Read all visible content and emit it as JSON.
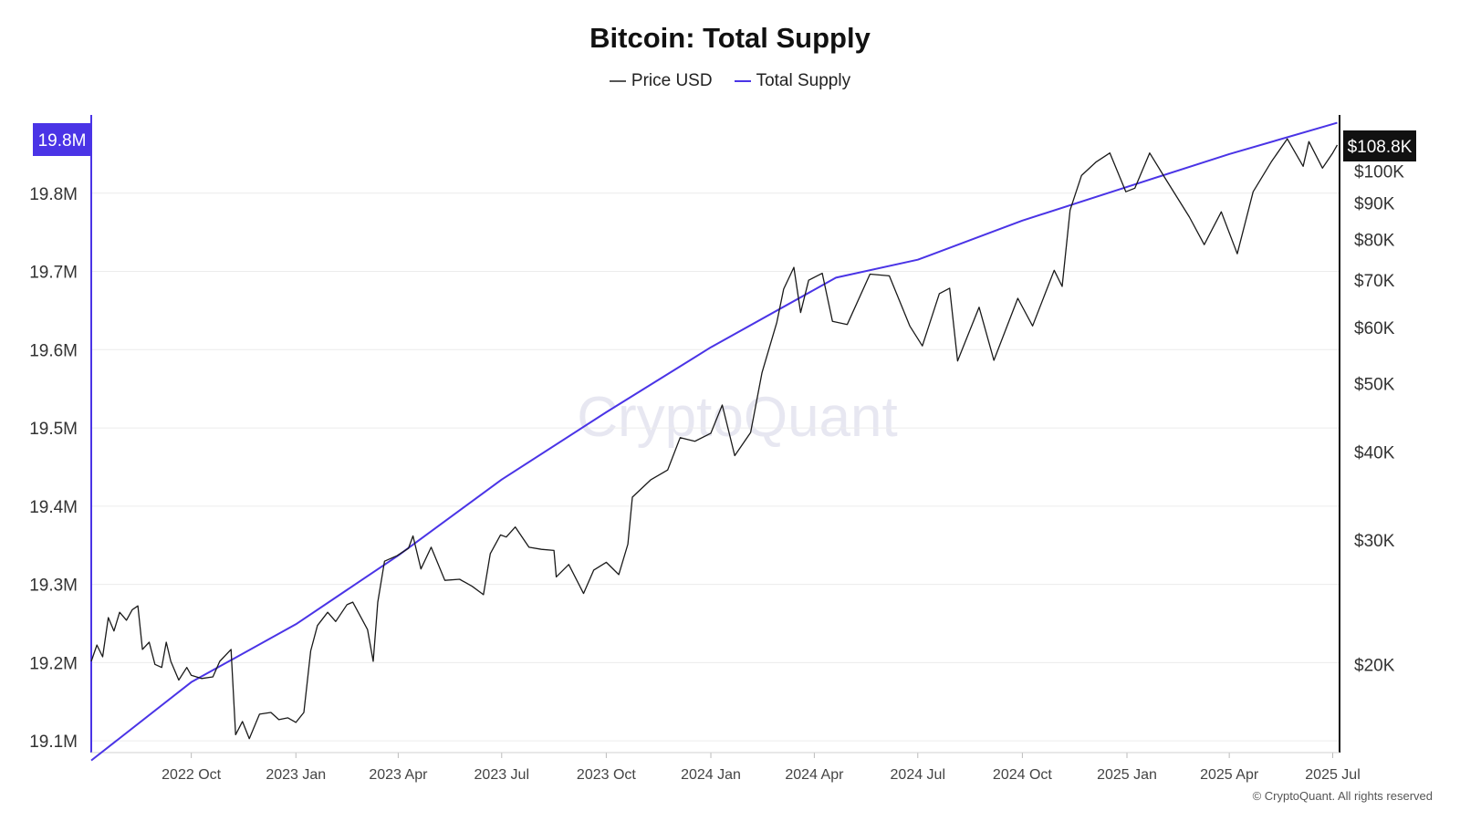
{
  "title": "Bitcoin: Total Supply",
  "watermark": "CryptoQuant",
  "copyright": "© CryptoQuant. All rights reserved",
  "legend": [
    {
      "label": "Price USD",
      "color": "#555555"
    },
    {
      "label": "Total Supply",
      "color": "#4a34e6"
    }
  ],
  "colors": {
    "supply": "#4a34e6",
    "price": "#1a1a1a",
    "left_axis": "#4a34e6",
    "right_axis": "#111111"
  },
  "chart_data": {
    "type": "line",
    "title": "Bitcoin: Total Supply",
    "x_ticks": [
      "2022 Oct",
      "2023 Jan",
      "2023 Apr",
      "2023 Jul",
      "2023 Oct",
      "2024 Jan",
      "2024 Apr",
      "2024 Jul",
      "2024 Oct",
      "2025 Jan",
      "2025 Apr",
      "2025 Jul"
    ],
    "x_tick_dates": [
      "2022-10-01",
      "2023-01-01",
      "2023-04-01",
      "2023-07-01",
      "2023-10-01",
      "2024-01-01",
      "2024-04-01",
      "2024-07-01",
      "2024-10-01",
      "2025-01-01",
      "2025-04-01",
      "2025-07-01"
    ],
    "xlim": [
      "2022-07-05",
      "2025-07-07"
    ],
    "y_left": {
      "label": "Total Supply",
      "ticks": [
        19.1,
        19.2,
        19.3,
        19.4,
        19.5,
        19.6,
        19.7,
        19.8
      ],
      "tick_labels": [
        "19.1M",
        "19.2M",
        "19.3M",
        "19.4M",
        "19.5M",
        "19.6M",
        "19.7M",
        "19.8M"
      ],
      "ylim": [
        19.085,
        19.9
      ],
      "unit": "M"
    },
    "y_right": {
      "scale": "log",
      "ticks": [
        20000,
        30000,
        40000,
        50000,
        60000,
        70000,
        80000,
        90000,
        100000
      ],
      "tick_labels": [
        "$20K",
        "$30K",
        "$40K",
        "$50K",
        "$60K",
        "$70K",
        "$80K",
        "$90K",
        "$100K"
      ],
      "ylim": [
        15000,
        120000
      ]
    },
    "current_labels": {
      "supply": "19.8M",
      "price": "$108.8K"
    },
    "grid": true,
    "legend_position": "top-center",
    "series": [
      {
        "name": "Total Supply",
        "axis": "left",
        "color": "#4a34e6",
        "points": [
          [
            "2022-07-05",
            19.075
          ],
          [
            "2022-10-01",
            19.175
          ],
          [
            "2023-01-01",
            19.249
          ],
          [
            "2023-04-01",
            19.337
          ],
          [
            "2023-07-01",
            19.434
          ],
          [
            "2023-10-01",
            19.52
          ],
          [
            "2024-01-01",
            19.603
          ],
          [
            "2024-04-20",
            19.692
          ],
          [
            "2024-07-01",
            19.715
          ],
          [
            "2024-10-01",
            19.765
          ],
          [
            "2025-01-01",
            19.808
          ],
          [
            "2025-04-01",
            19.85
          ],
          [
            "2025-07-05",
            19.89
          ]
        ]
      },
      {
        "name": "Price USD",
        "axis": "right",
        "color": "#1a1a1a",
        "points": [
          [
            "2022-07-05",
            20200
          ],
          [
            "2022-07-10",
            21300
          ],
          [
            "2022-07-15",
            20500
          ],
          [
            "2022-07-20",
            23300
          ],
          [
            "2022-07-25",
            22300
          ],
          [
            "2022-07-30",
            23700
          ],
          [
            "2022-08-05",
            23100
          ],
          [
            "2022-08-10",
            23900
          ],
          [
            "2022-08-15",
            24200
          ],
          [
            "2022-08-19",
            21000
          ],
          [
            "2022-08-25",
            21500
          ],
          [
            "2022-08-30",
            20000
          ],
          [
            "2022-09-05",
            19800
          ],
          [
            "2022-09-09",
            21500
          ],
          [
            "2022-09-13",
            20200
          ],
          [
            "2022-09-20",
            19000
          ],
          [
            "2022-09-27",
            19800
          ],
          [
            "2022-10-01",
            19300
          ],
          [
            "2022-10-10",
            19100
          ],
          [
            "2022-10-20",
            19200
          ],
          [
            "2022-10-26",
            20200
          ],
          [
            "2022-11-05",
            21000
          ],
          [
            "2022-11-09",
            15900
          ],
          [
            "2022-11-15",
            16600
          ],
          [
            "2022-11-21",
            15700
          ],
          [
            "2022-11-30",
            17000
          ],
          [
            "2022-12-10",
            17100
          ],
          [
            "2022-12-17",
            16700
          ],
          [
            "2022-12-25",
            16800
          ],
          [
            "2023-01-01",
            16550
          ],
          [
            "2023-01-08",
            17100
          ],
          [
            "2023-01-14",
            20900
          ],
          [
            "2023-01-20",
            22700
          ],
          [
            "2023-01-29",
            23700
          ],
          [
            "2023-02-05",
            23000
          ],
          [
            "2023-02-15",
            24300
          ],
          [
            "2023-02-20",
            24500
          ],
          [
            "2023-02-28",
            23200
          ],
          [
            "2023-03-05",
            22400
          ],
          [
            "2023-03-10",
            20200
          ],
          [
            "2023-03-14",
            24500
          ],
          [
            "2023-03-20",
            28000
          ],
          [
            "2023-03-31",
            28500
          ],
          [
            "2023-04-10",
            29200
          ],
          [
            "2023-04-14",
            30400
          ],
          [
            "2023-04-21",
            27300
          ],
          [
            "2023-04-30",
            29300
          ],
          [
            "2023-05-12",
            26300
          ],
          [
            "2023-05-25",
            26400
          ],
          [
            "2023-06-05",
            25800
          ],
          [
            "2023-06-15",
            25100
          ],
          [
            "2023-06-21",
            28700
          ],
          [
            "2023-06-30",
            30500
          ],
          [
            "2023-07-05",
            30300
          ],
          [
            "2023-07-13",
            31300
          ],
          [
            "2023-07-25",
            29300
          ],
          [
            "2023-08-05",
            29100
          ],
          [
            "2023-08-16",
            29000
          ],
          [
            "2023-08-18",
            26600
          ],
          [
            "2023-08-29",
            27700
          ],
          [
            "2023-09-11",
            25200
          ],
          [
            "2023-09-20",
            27200
          ],
          [
            "2023-10-01",
            27900
          ],
          [
            "2023-10-12",
            26800
          ],
          [
            "2023-10-20",
            29600
          ],
          [
            "2023-10-24",
            34500
          ],
          [
            "2023-11-09",
            36500
          ],
          [
            "2023-11-24",
            37700
          ],
          [
            "2023-12-05",
            41900
          ],
          [
            "2023-12-18",
            41400
          ],
          [
            "2024-01-01",
            42500
          ],
          [
            "2024-01-11",
            46600
          ],
          [
            "2024-01-22",
            39500
          ],
          [
            "2024-02-05",
            42600
          ],
          [
            "2024-02-15",
            51800
          ],
          [
            "2024-02-28",
            61000
          ],
          [
            "2024-03-05",
            68000
          ],
          [
            "2024-03-14",
            73000
          ],
          [
            "2024-03-20",
            63000
          ],
          [
            "2024-03-27",
            70000
          ],
          [
            "2024-04-08",
            71600
          ],
          [
            "2024-04-17",
            61200
          ],
          [
            "2024-04-30",
            60600
          ],
          [
            "2024-05-20",
            71400
          ],
          [
            "2024-06-06",
            71000
          ],
          [
            "2024-06-24",
            60300
          ],
          [
            "2024-07-05",
            56500
          ],
          [
            "2024-07-20",
            67000
          ],
          [
            "2024-07-29",
            68200
          ],
          [
            "2024-08-05",
            53800
          ],
          [
            "2024-08-24",
            64100
          ],
          [
            "2024-09-06",
            53900
          ],
          [
            "2024-09-27",
            66000
          ],
          [
            "2024-10-10",
            60300
          ],
          [
            "2024-10-29",
            72300
          ],
          [
            "2024-11-05",
            68600
          ],
          [
            "2024-11-12",
            88000
          ],
          [
            "2024-11-22",
            98500
          ],
          [
            "2024-12-05",
            103000
          ],
          [
            "2024-12-17",
            106000
          ],
          [
            "2024-12-31",
            93400
          ],
          [
            "2025-01-08",
            94500
          ],
          [
            "2025-01-21",
            106000
          ],
          [
            "2025-02-03",
            98000
          ],
          [
            "2025-02-25",
            86000
          ],
          [
            "2025-03-10",
            78600
          ],
          [
            "2025-03-25",
            87500
          ],
          [
            "2025-04-08",
            76300
          ],
          [
            "2025-04-22",
            93400
          ],
          [
            "2025-05-08",
            103000
          ],
          [
            "2025-05-22",
            111000
          ],
          [
            "2025-06-05",
            101500
          ],
          [
            "2025-06-10",
            110000
          ],
          [
            "2025-06-22",
            100900
          ],
          [
            "2025-07-01",
            106000
          ],
          [
            "2025-07-05",
            108800
          ]
        ]
      }
    ]
  }
}
